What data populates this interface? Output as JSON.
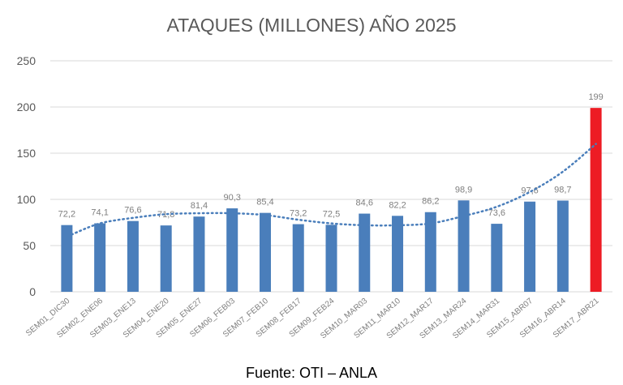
{
  "chart_data": {
    "type": "bar",
    "title": "ATAQUES (MILLONES) AÑO 2025",
    "xlabel": "",
    "ylabel": "",
    "ylim": [
      0,
      250
    ],
    "yticks": [
      0,
      50,
      100,
      150,
      200,
      250
    ],
    "grid": true,
    "legend": "none",
    "categories": [
      "SEM01_DIC30",
      "SEM02_ENE06",
      "SEM03_ENE13",
      "SEM04_ENE20",
      "SEM05_ENE27",
      "SEM06_FEB03",
      "SEM07_FEB10",
      "SEM08_FEB17",
      "SEM09_FEB24",
      "SEM10_MAR03",
      "SEM11_MAR10",
      "SEM12_MAR17",
      "SEM13_MAR24",
      "SEM14_MAR31",
      "SEM15_ABR07",
      "SEM16_ABR14",
      "SEM17_ABR21"
    ],
    "values": [
      72.2,
      74.1,
      76.6,
      71.8,
      81.4,
      90.3,
      85.4,
      73.2,
      72.5,
      84.6,
      82.2,
      86.2,
      98.9,
      73.6,
      97.6,
      98.7,
      199
    ],
    "value_labels": [
      "72,2",
      "74,1",
      "76,6",
      "71,8",
      "81,4",
      "90,3",
      "85,4",
      "73,2",
      "72,5",
      "84,6",
      "82,2",
      "86,2",
      "98,9",
      "73,6",
      "97,6",
      "98,7",
      "199"
    ],
    "trendline": {
      "style": "dotted",
      "type": "polynomial",
      "approx_values": [
        62,
        74,
        80,
        84,
        85,
        85,
        83,
        78,
        74,
        72,
        72,
        74,
        82,
        92,
        108,
        130,
        160
      ]
    },
    "colors": {
      "bar": "#4a7ebb",
      "highlight_bar": "#ed1c24",
      "trendline": "#4a7ebb",
      "grid": "#d9d9d9",
      "axis_text": "#595959"
    },
    "highlight_index": 16
  },
  "source": "Fuente: OTI – ANLA"
}
